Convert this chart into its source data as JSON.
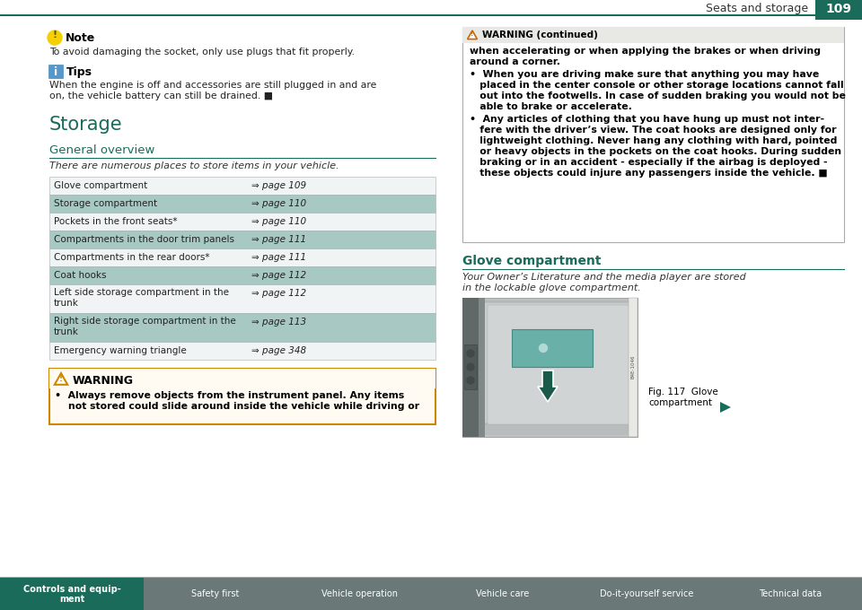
{
  "page_bg": "#ffffff",
  "header_bg": "#1a6b5a",
  "header_title": "Seats and storage",
  "header_page": "109",
  "teal_color": "#1a6b5a",
  "light_teal_row": "#a8c8c4",
  "white_row": "#f0f4f4",
  "note_icon_color": "#f5d000",
  "tips_icon_color": "#5898c8",
  "warning_border_color": "#cc8800",
  "footer_bg": "#6a7878",
  "footer_active_bg": "#1a6b5a",
  "footer_tabs": [
    "Controls and equip-\nment",
    "Safety first",
    "Vehicle operation",
    "Vehicle care",
    "Do-it-yourself service",
    "Technical data"
  ],
  "note_text": "To avoid damaging the socket, only use plugs that fit properly.",
  "tips_line1": "When the engine is off and accessories are still plugged in and are",
  "tips_line2": "on, the vehicle battery can still be drained.",
  "storage_title": "Storage",
  "overview_title": "General overview",
  "overview_subtitle": "There are numerous places to store items in your vehicle.",
  "table_rows": [
    {
      "label": "Glove compartment",
      "page": "⇒ page 109",
      "shaded": false
    },
    {
      "label": "Storage compartment",
      "page": "⇒ page 110",
      "shaded": true
    },
    {
      "label": "Pockets in the front seats*",
      "page": "⇒ page 110",
      "shaded": false
    },
    {
      "label": "Compartments in the door trim panels",
      "page": "⇒ page 111",
      "shaded": true
    },
    {
      "label": "Compartments in the rear doors*",
      "page": "⇒ page 111",
      "shaded": false
    },
    {
      "label": "Coat hooks",
      "page": "⇒ page 112",
      "shaded": true
    },
    {
      "label": "Left side storage compartment in the trunk",
      "page": "⇒ page 112",
      "shaded": false,
      "two_lines": true
    },
    {
      "label": "Right side storage compartment in the trunk",
      "page": "⇒ page 113",
      "shaded": true,
      "two_lines": true
    },
    {
      "label": "Emergency warning triangle",
      "page": "⇒ page 348",
      "shaded": false
    }
  ],
  "warning_title": "WARNING",
  "warning_line1": "•  Always remove objects from the instrument panel. Any items",
  "warning_line2": "    not stored could slide around inside the vehicle while driving or",
  "warn2_header": "WARNING (continued)",
  "warn2_text1a": "when accelerating or when applying the brakes or when driving",
  "warn2_text1b": "around a corner.",
  "warn2_b1": [
    "•  When you are driving make sure that anything you may have",
    "   placed in the center console or other storage locations cannot fall",
    "   out into the footwells. In case of sudden braking you would not be",
    "   able to brake or accelerate."
  ],
  "warn2_b2": [
    "•  Any articles of clothing that you have hung up must not inter-",
    "   fere with the driver’s view. The coat hooks are designed only for",
    "   lightweight clothing. Never hang any clothing with hard, pointed",
    "   or heavy objects in the pockets on the coat hooks. During sudden",
    "   braking or in an accident - especially if the airbag is deployed -",
    "   these objects could injure any passengers inside the vehicle. ■"
  ],
  "glove_title": "Glove compartment",
  "glove_line1": "Your Owner’s Literature and the media player are stored",
  "glove_line2": "in the lockable glove compartment.",
  "fig_caption_line1": "Fig. 117  Glove",
  "fig_caption_line2": "compartment"
}
